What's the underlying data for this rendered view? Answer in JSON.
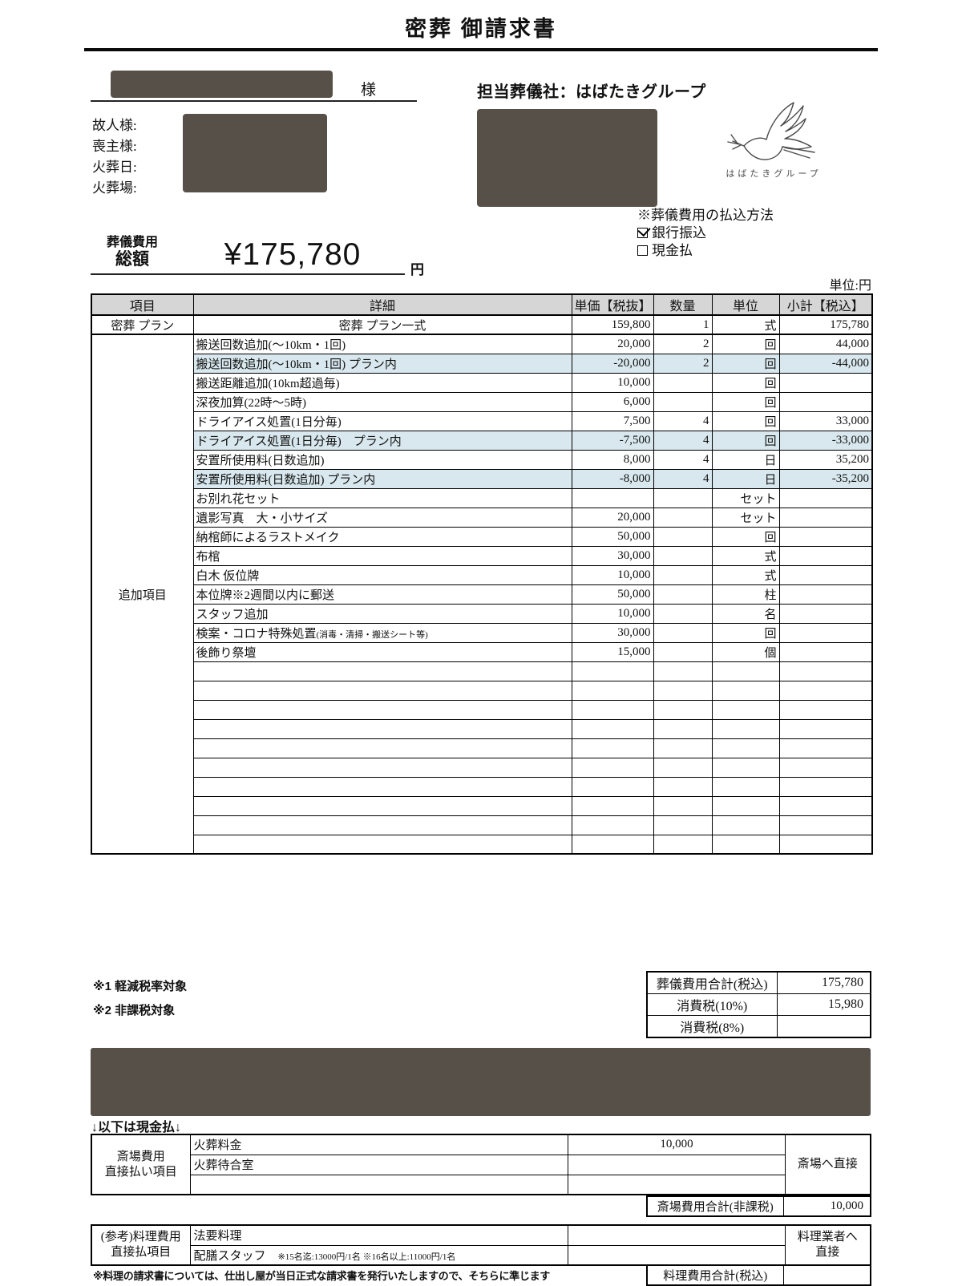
{
  "title": "密葬 御請求書",
  "customer": {
    "suffix": "様"
  },
  "vendor": {
    "heading": "担当葬儀社：はばたきグループ",
    "logo_text": "はばたきグループ"
  },
  "info_labels": [
    "故人様:",
    "喪主様:",
    "火葬日:",
    "火葬場:"
  ],
  "payment": {
    "heading": "※葬儀費用の払込方法",
    "options": [
      {
        "label": "銀行振込",
        "checked": true
      },
      {
        "label": "現金払",
        "checked": false
      }
    ]
  },
  "total_banner": {
    "label_line1": "葬儀費用",
    "label_line2": "総額",
    "amount": "¥175,780",
    "unit": "円"
  },
  "unit_note": "単位:円",
  "main_table": {
    "headers": [
      "項目",
      "詳細",
      "単価【税抜】",
      "数量",
      "単位",
      "小計【税込】"
    ],
    "plan_row": {
      "item": "密葬 プラン",
      "detail": "密葬 プラン一式",
      "unit_price": "159,800",
      "qty": "1",
      "unit": "式",
      "subtotal": "175,780"
    },
    "addon_label": "追加項目",
    "addon_rows": [
      {
        "detail": "搬送回数追加(～10km・1回)",
        "unit_price": "20,000",
        "qty": "2",
        "unit": "回",
        "subtotal": "44,000",
        "highlight": false
      },
      {
        "detail": "搬送回数追加(～10km・1回) プラン内",
        "unit_price": "-20,000",
        "qty": "2",
        "unit": "回",
        "subtotal": "-44,000",
        "highlight": true
      },
      {
        "detail": "搬送距離追加(10km超過毎)",
        "unit_price": "10,000",
        "qty": "",
        "unit": "回",
        "subtotal": "",
        "highlight": false
      },
      {
        "detail": "深夜加算(22時～5時)",
        "unit_price": "6,000",
        "qty": "",
        "unit": "回",
        "subtotal": "",
        "highlight": false
      },
      {
        "detail": "ドライアイス処置(1日分毎)",
        "unit_price": "7,500",
        "qty": "4",
        "unit": "回",
        "subtotal": "33,000",
        "highlight": false
      },
      {
        "detail": "ドライアイス処置(1日分毎)　プラン内",
        "unit_price": "-7,500",
        "qty": "4",
        "unit": "回",
        "subtotal": "-33,000",
        "highlight": true
      },
      {
        "detail": "安置所使用料(日数追加)",
        "unit_price": "8,000",
        "qty": "4",
        "unit": "日",
        "subtotal": "35,200",
        "highlight": false
      },
      {
        "detail": "安置所使用料(日数追加) プラン内",
        "unit_price": "-8,000",
        "qty": "4",
        "unit": "日",
        "subtotal": "-35,200",
        "highlight": true
      },
      {
        "detail": "お別れ花セット",
        "unit_price": "",
        "qty": "",
        "unit": "セット",
        "subtotal": "",
        "highlight": false
      },
      {
        "detail": "遺影写真　大・小サイズ",
        "unit_price": "20,000",
        "qty": "",
        "unit": "セット",
        "subtotal": "",
        "highlight": false
      },
      {
        "detail": "納棺師によるラストメイク",
        "unit_price": "50,000",
        "qty": "",
        "unit": "回",
        "subtotal": "",
        "highlight": false
      },
      {
        "detail": "布棺",
        "unit_price": "30,000",
        "qty": "",
        "unit": "式",
        "subtotal": "",
        "highlight": false
      },
      {
        "detail": "白木 仮位牌",
        "unit_price": "10,000",
        "qty": "",
        "unit": "式",
        "subtotal": "",
        "highlight": false
      },
      {
        "detail": "本位牌※2週間以内に郵送",
        "unit_price": "50,000",
        "qty": "",
        "unit": "柱",
        "subtotal": "",
        "highlight": false
      },
      {
        "detail": "スタッフ追加",
        "unit_price": "10,000",
        "qty": "",
        "unit": "名",
        "subtotal": "",
        "highlight": false
      },
      {
        "detail": "検案・コロナ特殊処置",
        "detail_small": "(消毒・清掃・搬送シート等)",
        "unit_price": "30,000",
        "qty": "",
        "unit": "回",
        "subtotal": "",
        "highlight": false
      },
      {
        "detail": "後飾り祭壇",
        "unit_price": "15,000",
        "qty": "",
        "unit": "個",
        "subtotal": "",
        "highlight": false
      }
    ],
    "empty_row_count": 10
  },
  "notes": [
    "※1  軽減税率対象",
    "※2  非課税対象"
  ],
  "totals": [
    {
      "label": "葬儀費用合計(税込)",
      "value": "175,780"
    },
    {
      "label": "消費税(10%)",
      "value": "15,980"
    },
    {
      "label": "消費税(8%)",
      "value": ""
    }
  ],
  "cash_section": {
    "arrow_note": "↓以下は現金払↓",
    "venue_table": {
      "label_line1": "斎場費用",
      "label_line2": "直接払い項目",
      "rows": [
        {
          "detail": "火葬料金",
          "amount": "10,000"
        },
        {
          "detail": "火葬待合室",
          "amount": ""
        },
        {
          "detail": "",
          "amount": ""
        }
      ],
      "right_label": "斎場へ直接",
      "total_label": "斎場費用合計(非課税)",
      "total_value": "10,000"
    },
    "catering_table": {
      "label_line1": "(参考)料理費用",
      "label_line2": "直接払項目",
      "rows": [
        {
          "detail": "法要料理",
          "detail_small": "",
          "amount": ""
        },
        {
          "detail": "配膳スタッフ",
          "detail_small": "※15名迄:13000円/1名 ※16名以上:11000円/1名",
          "amount": ""
        }
      ],
      "right_label_line1": "料理業者へ",
      "right_label_line2": "直接",
      "total_label": "料理費用合計(税込)",
      "total_value": "",
      "footnote": "※料理の請求書については、仕出し屋が当日正式な請求書を発行いたしますので、そちらに準じます"
    }
  },
  "colors": {
    "redaction": "#565049",
    "highlight": "#d8e8ee",
    "header_bg": "#d6d6d6"
  }
}
